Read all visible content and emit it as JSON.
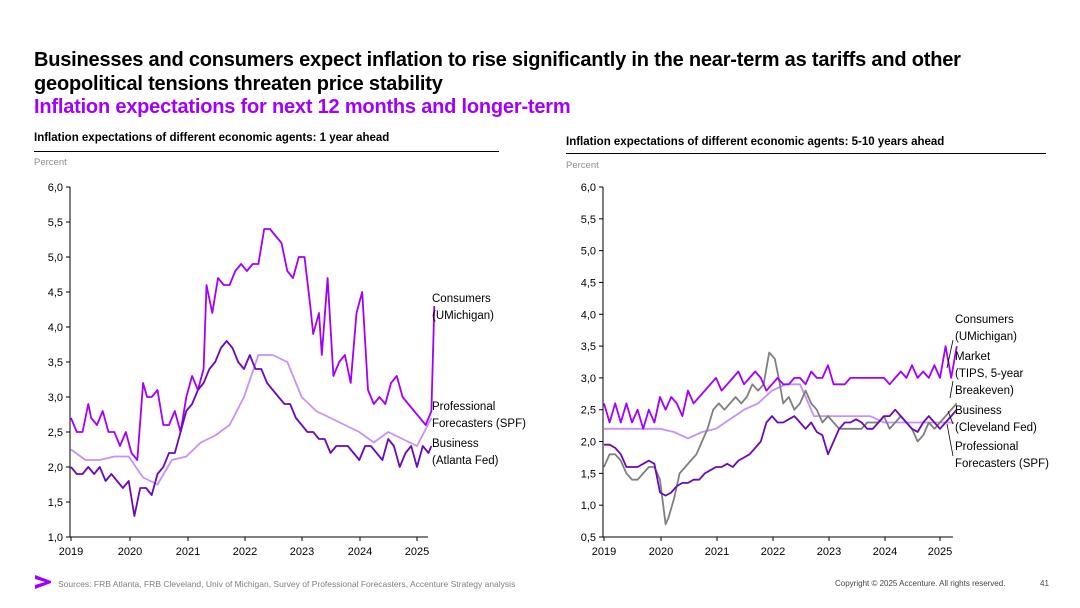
{
  "header": {
    "title": "Businesses and consumers expect inflation to rise significantly in the near-term as tariffs and other geopolitical tensions threaten price stability",
    "subtitle": "Inflation expectations for next 12 months and longer-term"
  },
  "footer": {
    "sources": "Sources: FRB Atlanta, FRB Cleveland, Univ of Michigan, Survey of Professional Forecasters, Accenture Strategy analysis",
    "copyright": "Copyright © 2025 Accenture. All rights reserved.",
    "page": "41"
  },
  "colors": {
    "consumers": "#a100ff",
    "business": "#6a0ab5",
    "spf": "#c891f5",
    "market": "#7f7f7f"
  },
  "chart_data": [
    {
      "type": "line",
      "title": "Inflation expectations of different economic agents: 1 year ahead",
      "ylabel": "Percent",
      "ylim": [
        1.0,
        6.0
      ],
      "yticks": [
        "1,0",
        "1,5",
        "2,0",
        "2,5",
        "3,0",
        "3,5",
        "4,0",
        "4,5",
        "5,0",
        "5,5",
        "6,0"
      ],
      "xlim": [
        2019,
        2025.4
      ],
      "xticks": [
        "2019",
        "2020",
        "2021",
        "2022",
        "2023",
        "2024",
        "2025"
      ],
      "series": [
        {
          "name": "Consumers (UMichigan)",
          "label_lines": [
            "Consumers",
            "(UMichigan)"
          ],
          "color": "#a100ff",
          "x": [
            2019.0,
            2019.1,
            2019.2,
            2019.3,
            2019.35,
            2019.45,
            2019.55,
            2019.65,
            2019.75,
            2019.85,
            2019.95,
            2020.05,
            2020.15,
            2020.25,
            2020.32,
            2020.4,
            2020.5,
            2020.6,
            2020.7,
            2020.8,
            2020.9,
            2021.0,
            2021.1,
            2021.2,
            2021.3,
            2021.35,
            2021.45,
            2021.55,
            2021.65,
            2021.75,
            2021.85,
            2021.95,
            2022.05,
            2022.15,
            2022.25,
            2022.35,
            2022.45,
            2022.55,
            2022.65,
            2022.75,
            2022.85,
            2022.95,
            2023.05,
            2023.15,
            2023.2,
            2023.3,
            2023.35,
            2023.45,
            2023.55,
            2023.65,
            2023.75,
            2023.85,
            2023.95,
            2024.05,
            2024.15,
            2024.25,
            2024.35,
            2024.45,
            2024.55,
            2024.65,
            2024.75,
            2024.85,
            2024.95,
            2025.05,
            2025.15,
            2025.25
          ],
          "y": [
            2.7,
            2.5,
            2.5,
            2.9,
            2.7,
            2.6,
            2.8,
            2.5,
            2.5,
            2.3,
            2.5,
            2.2,
            2.1,
            3.2,
            3.0,
            3.0,
            3.1,
            2.6,
            2.6,
            2.8,
            2.5,
            3.0,
            3.3,
            3.1,
            3.4,
            4.6,
            4.2,
            4.7,
            4.6,
            4.6,
            4.8,
            4.9,
            4.8,
            4.9,
            4.9,
            5.4,
            5.4,
            5.3,
            5.2,
            4.8,
            4.7,
            5.0,
            5.0,
            4.3,
            3.9,
            4.2,
            3.6,
            4.7,
            3.3,
            3.5,
            3.6,
            3.2,
            4.2,
            4.5,
            3.1,
            2.9,
            3.0,
            2.9,
            3.2,
            3.3,
            3.0,
            2.9,
            2.8,
            2.7,
            2.6,
            2.8
          ],
          "last": [
            2025.3,
            4.3
          ]
        },
        {
          "name": "Professional Forecasters (SPF)",
          "label_lines": [
            "Professional",
            "Forecasters (SPF)"
          ],
          "color": "#c891f5",
          "x": [
            2019.0,
            2019.25,
            2019.5,
            2019.75,
            2020.0,
            2020.25,
            2020.5,
            2020.75,
            2021.0,
            2021.25,
            2021.5,
            2021.75,
            2022.0,
            2022.25,
            2022.5,
            2022.75,
            2023.0,
            2023.25,
            2023.5,
            2023.75,
            2024.0,
            2024.25,
            2024.5,
            2024.75,
            2025.0,
            2025.25
          ],
          "y": [
            2.25,
            2.1,
            2.1,
            2.15,
            2.15,
            1.85,
            1.75,
            2.1,
            2.15,
            2.35,
            2.45,
            2.6,
            3.0,
            3.6,
            3.6,
            3.5,
            3.0,
            2.8,
            2.7,
            2.6,
            2.5,
            2.35,
            2.5,
            2.4,
            2.3,
            2.7
          ]
        },
        {
          "name": "Business (Atlanta Fed)",
          "label_lines": [
            "Business",
            "(Atlanta Fed)"
          ],
          "color": "#6a0ab5",
          "x": [
            2019.0,
            2019.1,
            2019.2,
            2019.3,
            2019.4,
            2019.5,
            2019.6,
            2019.7,
            2019.8,
            2019.9,
            2020.0,
            2020.1,
            2020.2,
            2020.3,
            2020.4,
            2020.5,
            2020.6,
            2020.7,
            2020.8,
            2020.9,
            2021.0,
            2021.1,
            2021.2,
            2021.3,
            2021.4,
            2021.5,
            2021.6,
            2021.7,
            2021.8,
            2021.9,
            2022.0,
            2022.1,
            2022.2,
            2022.3,
            2022.4,
            2022.5,
            2022.6,
            2022.7,
            2022.8,
            2022.9,
            2023.0,
            2023.1,
            2023.2,
            2023.3,
            2023.4,
            2023.5,
            2023.6,
            2023.7,
            2023.8,
            2023.9,
            2024.0,
            2024.1,
            2024.2,
            2024.3,
            2024.4,
            2024.5,
            2024.6,
            2024.7,
            2024.8,
            2024.9,
            2025.0,
            2025.1,
            2025.2,
            2025.25
          ],
          "y": [
            2.0,
            1.9,
            1.9,
            2.0,
            1.9,
            2.0,
            1.8,
            1.9,
            1.8,
            1.7,
            1.8,
            1.3,
            1.7,
            1.7,
            1.6,
            1.9,
            2.0,
            2.2,
            2.2,
            2.5,
            2.8,
            2.9,
            3.1,
            3.2,
            3.4,
            3.5,
            3.7,
            3.8,
            3.7,
            3.5,
            3.4,
            3.6,
            3.4,
            3.4,
            3.2,
            3.1,
            3.0,
            2.9,
            2.9,
            2.7,
            2.6,
            2.5,
            2.5,
            2.4,
            2.4,
            2.2,
            2.3,
            2.3,
            2.3,
            2.2,
            2.1,
            2.3,
            2.3,
            2.2,
            2.1,
            2.4,
            2.3,
            2.0,
            2.2,
            2.3,
            2.0,
            2.3,
            2.2,
            2.3
          ]
        }
      ]
    },
    {
      "type": "line",
      "title": "Inflation expectations of different economic agents: 5-10 years ahead",
      "ylabel": "Percent",
      "ylim": [
        0.5,
        6.0
      ],
      "yticks": [
        "0,5",
        "1,0",
        "1,5",
        "2,0",
        "2,5",
        "3,0",
        "3,5",
        "4,0",
        "4,5",
        "5,0",
        "5,5",
        "6,0"
      ],
      "xlim": [
        2019,
        2025.4
      ],
      "xticks": [
        "2019",
        "2020",
        "2021",
        "2022",
        "2023",
        "2024",
        "2025"
      ],
      "series": [
        {
          "name": "Consumers (UMichigan)",
          "label_lines": [
            "Consumers",
            "(UMichigan)"
          ],
          "color": "#a100ff",
          "x": [
            2019.0,
            2019.1,
            2019.2,
            2019.3,
            2019.4,
            2019.5,
            2019.6,
            2019.7,
            2019.8,
            2019.9,
            2020.0,
            2020.1,
            2020.2,
            2020.3,
            2020.4,
            2020.5,
            2020.6,
            2020.7,
            2020.8,
            2020.9,
            2021.0,
            2021.1,
            2021.2,
            2021.3,
            2021.4,
            2021.5,
            2021.6,
            2021.7,
            2021.8,
            2021.9,
            2022.0,
            2022.1,
            2022.2,
            2022.3,
            2022.4,
            2022.5,
            2022.6,
            2022.7,
            2022.8,
            2022.9,
            2023.0,
            2023.1,
            2023.2,
            2023.3,
            2023.4,
            2023.5,
            2023.6,
            2023.7,
            2023.8,
            2023.9,
            2024.0,
            2024.1,
            2024.2,
            2024.3,
            2024.4,
            2024.5,
            2024.6,
            2024.7,
            2024.8,
            2024.9,
            2025.0,
            2025.1,
            2025.2,
            2025.3
          ],
          "y": [
            2.6,
            2.3,
            2.6,
            2.3,
            2.6,
            2.3,
            2.5,
            2.2,
            2.5,
            2.3,
            2.7,
            2.5,
            2.7,
            2.6,
            2.4,
            2.8,
            2.6,
            2.7,
            2.8,
            2.9,
            3.0,
            2.8,
            2.9,
            3.0,
            3.1,
            2.9,
            3.0,
            3.1,
            3.0,
            2.8,
            2.9,
            3.0,
            2.9,
            2.9,
            3.0,
            3.0,
            2.9,
            3.1,
            3.0,
            3.0,
            3.2,
            2.9,
            2.9,
            2.9,
            3.0,
            3.0,
            3.0,
            3.0,
            3.0,
            3.0,
            3.0,
            2.9,
            3.0,
            3.1,
            3.0,
            3.2,
            3.0,
            3.1,
            3.0,
            3.2,
            3.0,
            3.5,
            3.0,
            3.5
          ]
        },
        {
          "name": "Market (TIPS, 5-year Breakeven)",
          "label_lines": [
            "Market",
            "(TIPS, 5-year",
            "Breakeven)"
          ],
          "color": "#7f7f7f",
          "x": [
            2019.0,
            2019.1,
            2019.2,
            2019.3,
            2019.4,
            2019.5,
            2019.6,
            2019.7,
            2019.8,
            2019.9,
            2020.0,
            2020.1,
            2020.15,
            2020.25,
            2020.35,
            2020.45,
            2020.55,
            2020.65,
            2020.75,
            2020.85,
            2020.95,
            2021.05,
            2021.15,
            2021.25,
            2021.35,
            2021.45,
            2021.55,
            2021.65,
            2021.75,
            2021.85,
            2021.95,
            2022.05,
            2022.12,
            2022.2,
            2022.3,
            2022.4,
            2022.5,
            2022.6,
            2022.7,
            2022.8,
            2022.9,
            2023.0,
            2023.1,
            2023.2,
            2023.3,
            2023.4,
            2023.5,
            2023.6,
            2023.7,
            2023.8,
            2023.9,
            2024.0,
            2024.1,
            2024.2,
            2024.3,
            2024.4,
            2024.5,
            2024.6,
            2024.7,
            2024.8,
            2024.9,
            2025.0,
            2025.1,
            2025.2,
            2025.3
          ],
          "y": [
            1.6,
            1.8,
            1.8,
            1.7,
            1.5,
            1.4,
            1.4,
            1.5,
            1.6,
            1.6,
            1.4,
            0.7,
            0.8,
            1.1,
            1.5,
            1.6,
            1.7,
            1.8,
            2.0,
            2.2,
            2.5,
            2.6,
            2.5,
            2.6,
            2.7,
            2.6,
            2.7,
            2.9,
            2.8,
            2.9,
            3.4,
            3.3,
            3.0,
            2.6,
            2.7,
            2.5,
            2.6,
            2.8,
            2.6,
            2.5,
            2.3,
            2.4,
            2.3,
            2.2,
            2.2,
            2.2,
            2.2,
            2.2,
            2.3,
            2.3,
            2.3,
            2.4,
            2.2,
            2.3,
            2.4,
            2.3,
            2.2,
            2.0,
            2.1,
            2.3,
            2.2,
            2.3,
            2.4,
            2.5,
            2.6
          ]
        },
        {
          "name": "Business (Cleveland Fed)",
          "label_lines": [
            "Business",
            "(Cleveland Fed)"
          ],
          "color": "#6a0ab5",
          "x": [
            2019.0,
            2019.1,
            2019.2,
            2019.3,
            2019.4,
            2019.5,
            2019.6,
            2019.7,
            2019.8,
            2019.9,
            2020.0,
            2020.1,
            2020.2,
            2020.3,
            2020.4,
            2020.5,
            2020.6,
            2020.7,
            2020.8,
            2020.9,
            2021.0,
            2021.1,
            2021.2,
            2021.3,
            2021.4,
            2021.5,
            2021.6,
            2021.7,
            2021.8,
            2021.9,
            2022.0,
            2022.1,
            2022.2,
            2022.3,
            2022.4,
            2022.5,
            2022.6,
            2022.7,
            2022.8,
            2022.9,
            2023.0,
            2023.1,
            2023.2,
            2023.3,
            2023.4,
            2023.5,
            2023.6,
            2023.7,
            2023.8,
            2023.9,
            2024.0,
            2024.1,
            2024.2,
            2024.3,
            2024.4,
            2024.5,
            2024.6,
            2024.7,
            2024.8,
            2024.9,
            2025.0,
            2025.1,
            2025.2,
            2025.3
          ],
          "y": [
            1.95,
            1.95,
            1.9,
            1.8,
            1.6,
            1.6,
            1.6,
            1.65,
            1.7,
            1.65,
            1.2,
            1.15,
            1.2,
            1.3,
            1.35,
            1.35,
            1.4,
            1.4,
            1.5,
            1.55,
            1.6,
            1.6,
            1.65,
            1.6,
            1.7,
            1.75,
            1.8,
            1.9,
            2.0,
            2.3,
            2.4,
            2.3,
            2.3,
            2.35,
            2.4,
            2.3,
            2.2,
            2.3,
            2.15,
            2.1,
            1.8,
            2.0,
            2.2,
            2.3,
            2.3,
            2.35,
            2.3,
            2.2,
            2.2,
            2.3,
            2.4,
            2.4,
            2.5,
            2.4,
            2.3,
            2.2,
            2.15,
            2.3,
            2.4,
            2.3,
            2.2,
            2.3,
            2.4,
            2.5
          ]
        },
        {
          "name": "Professional Forecasters (SPF)",
          "label_lines": [
            "Professional",
            "Forecasters (SPF)"
          ],
          "color": "#c891f5",
          "x": [
            2019.0,
            2019.25,
            2019.5,
            2019.75,
            2020.0,
            2020.25,
            2020.5,
            2020.75,
            2021.0,
            2021.25,
            2021.5,
            2021.75,
            2022.0,
            2022.25,
            2022.5,
            2022.75,
            2023.0,
            2023.25,
            2023.5,
            2023.75,
            2024.0,
            2024.25,
            2024.5,
            2024.75,
            2025.0,
            2025.25
          ],
          "y": [
            2.2,
            2.2,
            2.2,
            2.2,
            2.2,
            2.15,
            2.05,
            2.15,
            2.2,
            2.35,
            2.5,
            2.6,
            2.8,
            2.9,
            2.9,
            2.4,
            2.4,
            2.4,
            2.4,
            2.4,
            2.3,
            2.3,
            2.3,
            2.3,
            2.3,
            2.3
          ]
        }
      ]
    }
  ]
}
